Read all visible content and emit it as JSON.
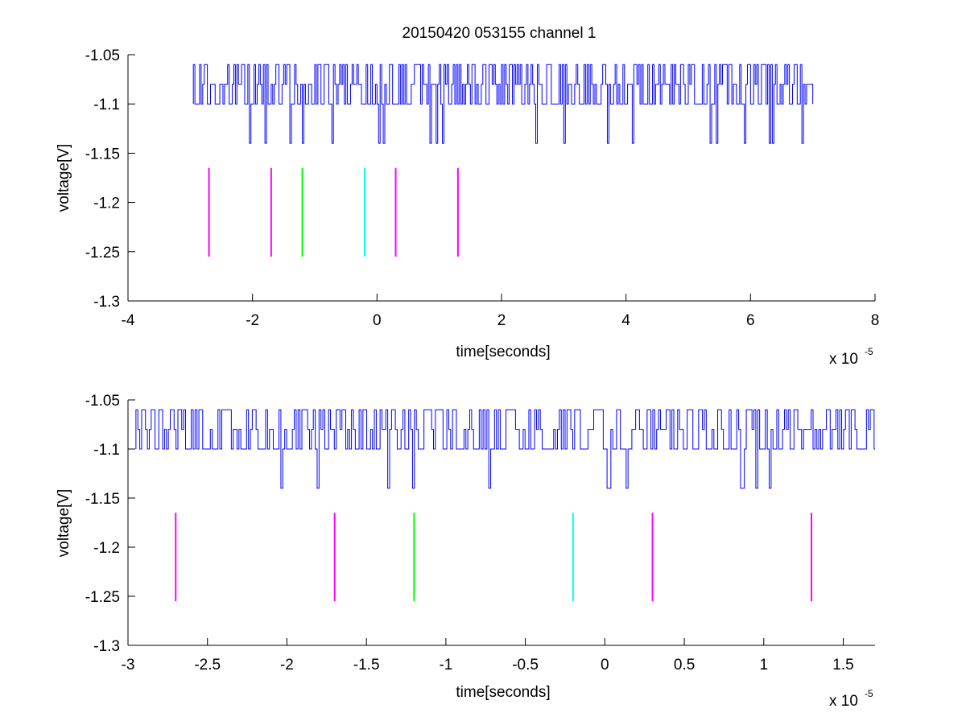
{
  "figure": {
    "title": "20150420 053155 channel 1"
  },
  "chart_data": [
    {
      "type": "line",
      "title": "20150420 053155 channel 1",
      "xlabel": "time[seconds]",
      "ylabel": "voltage[V]",
      "x_multiplier_label": "x 10",
      "x_multiplier_exponent": "-5",
      "xlim": [
        -4,
        8
      ],
      "ylim": [
        -1.3,
        -1.05
      ],
      "x_ticks": [
        -4,
        -2,
        0,
        2,
        4,
        6,
        8
      ],
      "x_tick_labels": [
        "-4",
        "-2",
        "0",
        "2",
        "4",
        "6",
        "8"
      ],
      "y_ticks": [
        -1.3,
        -1.25,
        -1.2,
        -1.15,
        -1.1,
        -1.05
      ],
      "y_tick_labels": [
        "-1.3",
        "-1.25",
        "-1.2",
        "-1.15",
        "-1.1",
        "-1.05"
      ],
      "grid": false,
      "series": [
        {
          "color": "#0000ff",
          "x_range": [
            -2.95,
            7.0
          ],
          "levels": [
            -1.06,
            -1.08,
            -1.1
          ],
          "dips": [
            -2.05,
            -1.8,
            -1.4,
            -1.2,
            -0.73,
            0.02,
            0.1,
            0.85,
            0.95,
            1.05,
            2.55,
            3.0,
            3.7,
            4.1,
            5.35,
            5.45,
            5.9,
            6.3,
            6.35,
            6.82
          ],
          "dip_value": -1.14
        }
      ],
      "markers": {
        "y_range": [
          -1.255,
          -1.165
        ],
        "items": [
          {
            "x": -2.7,
            "color": "#ff00ff"
          },
          {
            "x": -1.7,
            "color": "#ff00ff"
          },
          {
            "x": -1.2,
            "color": "#00ff00"
          },
          {
            "x": -0.2,
            "color": "#00ffff"
          },
          {
            "x": 0.3,
            "color": "#ff00ff"
          },
          {
            "x": 1.3,
            "color": "#ff00ff"
          }
        ]
      }
    },
    {
      "type": "line",
      "title": "",
      "xlabel": "time[seconds]",
      "ylabel": "voltage[V]",
      "x_multiplier_label": "x 10",
      "x_multiplier_exponent": "-5",
      "xlim": [
        -3.0,
        1.7
      ],
      "ylim": [
        -1.3,
        -1.05
      ],
      "x_ticks": [
        -3,
        -2.5,
        -2,
        -1.5,
        -1,
        -0.5,
        0,
        0.5,
        1,
        1.5
      ],
      "x_tick_labels": [
        "-3",
        "-2.5",
        "-2",
        "-1.5",
        "-1",
        "-0.5",
        "0",
        "0.5",
        "1",
        "1.5"
      ],
      "y_ticks": [
        -1.3,
        -1.25,
        -1.2,
        -1.15,
        -1.1,
        -1.05
      ],
      "y_tick_labels": [
        "-1.3",
        "-1.25",
        "-1.2",
        "-1.15",
        "-1.1",
        "-1.05"
      ],
      "grid": false,
      "series": [
        {
          "color": "#0000ff",
          "x_range": [
            -2.95,
            1.7
          ],
          "levels": [
            -1.06,
            -1.08,
            -1.1
          ],
          "dips": [
            -2.04,
            -1.81,
            -1.37,
            -1.21,
            -0.73,
            0.02,
            0.13,
            0.86,
            0.95,
            1.03
          ],
          "dip_value": -1.14
        }
      ],
      "markers": {
        "y_range": [
          -1.255,
          -1.165
        ],
        "items": [
          {
            "x": -2.7,
            "color": "#ff00ff"
          },
          {
            "x": -1.7,
            "color": "#ff00ff"
          },
          {
            "x": -1.2,
            "color": "#00ff00"
          },
          {
            "x": -0.2,
            "color": "#00ffff"
          },
          {
            "x": 0.3,
            "color": "#ff00ff"
          },
          {
            "x": 1.3,
            "color": "#ff00ff"
          }
        ]
      }
    }
  ]
}
